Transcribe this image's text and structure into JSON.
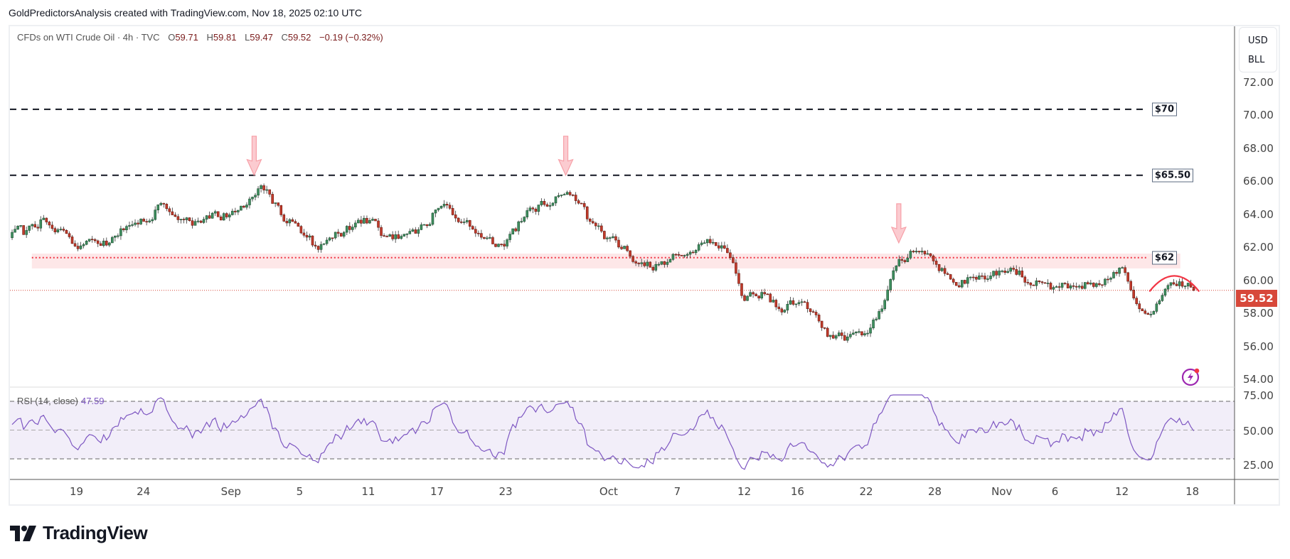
{
  "header": {
    "credit": "GoldPredictorsAnalysis created with TradingView.com, Nov 18, 2025 02:10 UTC"
  },
  "legend": {
    "symbol": "CFDs on WTI Crude Oil · 4h · TVC",
    "o_label": "O",
    "o": "59.71",
    "h_label": "H",
    "h": "59.81",
    "l_label": "L",
    "l": "59.47",
    "c_label": "C",
    "c": "59.52",
    "change": "−0.19 (−0.32%)"
  },
  "currency": {
    "line1": "USD",
    "line2": "BLL"
  },
  "price_tag": "59.52",
  "rsi": {
    "label": "RSI (14, close)",
    "value": "47.59",
    "axis": [
      "75.00",
      "50.00",
      "25.00"
    ]
  },
  "brand": "TradingView",
  "colors": {
    "up": "#3f8f5f",
    "down": "#c23b2b",
    "rsi": "#7e57c2",
    "level_box": "#5d6b80",
    "current": "#d7483a",
    "support": "#f23645"
  },
  "chart_data": {
    "type": "candlestick",
    "title": "CFDs on WTI Crude Oil · 4h · TVC",
    "ylim": [
      53.5,
      73
    ],
    "y_ticks": [
      "72.00",
      "70.00",
      "68.00",
      "66.00",
      "64.00",
      "62.00",
      "60.00",
      "58.00",
      "56.00",
      "54.00"
    ],
    "y_tick_values": [
      72,
      70,
      68,
      66,
      64,
      62,
      60,
      58,
      56,
      54
    ],
    "x_ticks": [
      {
        "label": "19",
        "t": 4
      },
      {
        "label": "24",
        "t": 7.9
      },
      {
        "label": "Sep",
        "t": 13
      },
      {
        "label": "5",
        "t": 17
      },
      {
        "label": "11",
        "t": 21
      },
      {
        "label": "17",
        "t": 25
      },
      {
        "label": "23",
        "t": 29
      },
      {
        "label": "Oct",
        "t": 35
      },
      {
        "label": "7",
        "t": 39
      },
      {
        "label": "12",
        "t": 42.9
      },
      {
        "label": "16",
        "t": 46
      },
      {
        "label": "22",
        "t": 50
      },
      {
        "label": "28",
        "t": 54
      },
      {
        "label": "Nov",
        "t": 57.9
      },
      {
        "label": "6",
        "t": 61
      },
      {
        "label": "12",
        "t": 64.9
      },
      {
        "label": "18",
        "t": 69
      }
    ],
    "daily_closes": [
      62.9,
      63.8,
      63.2,
      62.2,
      62.6,
      62.4,
      63.4,
      63.7,
      64.8,
      63.8,
      63.7,
      64.2,
      64.1,
      64.7,
      65.6,
      64.1,
      63.4,
      62.2,
      62.7,
      63.2,
      63.6,
      62.8,
      62.8,
      63.2,
      64.4,
      64.1,
      63.4,
      62.7,
      62.2,
      63.7,
      64.7,
      65.2,
      65.3,
      63.7,
      62.7,
      62.2,
      61.2,
      61.1,
      61.7,
      61.8,
      62.4,
      61.8,
      58.9,
      59.4,
      58.4,
      58.7,
      58.2,
      56.8,
      56.7,
      56.9,
      58.4,
      61.4,
      61.9,
      61.3,
      60.2,
      60.3,
      60.2,
      60.7,
      60.7,
      60.1,
      59.7,
      59.8,
      59.9,
      60.2,
      60.9,
      58.4,
      58.7,
      59.9,
      59.71
    ],
    "last_candle": {
      "o": 59.71,
      "h": 59.81,
      "l": 59.47,
      "c": 59.52
    },
    "levels": [
      {
        "label": "$70",
        "price": 70.5,
        "style": "dashed",
        "t_end": 66.4
      },
      {
        "label": "$65.50",
        "price": 66.5,
        "style": "dashed",
        "t_end": 66.4
      },
      {
        "label": "$62",
        "price": 61.5,
        "style": "dotted-red",
        "t_start": 1.4,
        "t_end": 66.4
      }
    ],
    "support_zone": {
      "from": 60.85,
      "to": 61.75,
      "t_start": 1.4,
      "t_end": 68.3
    },
    "arrows": [
      {
        "t": 14.35,
        "price": 66.5
      },
      {
        "t": 32.5,
        "price": 66.5
      },
      {
        "t": 51.9,
        "price": 62.4
      }
    ],
    "arc": {
      "t_start": 66.5,
      "t_end": 69.4,
      "price_base": 59.45,
      "price_peak": 60.4
    },
    "rsi_ylim": [
      25,
      75
    ],
    "rsi_bands": [
      75,
      50,
      25
    ]
  }
}
